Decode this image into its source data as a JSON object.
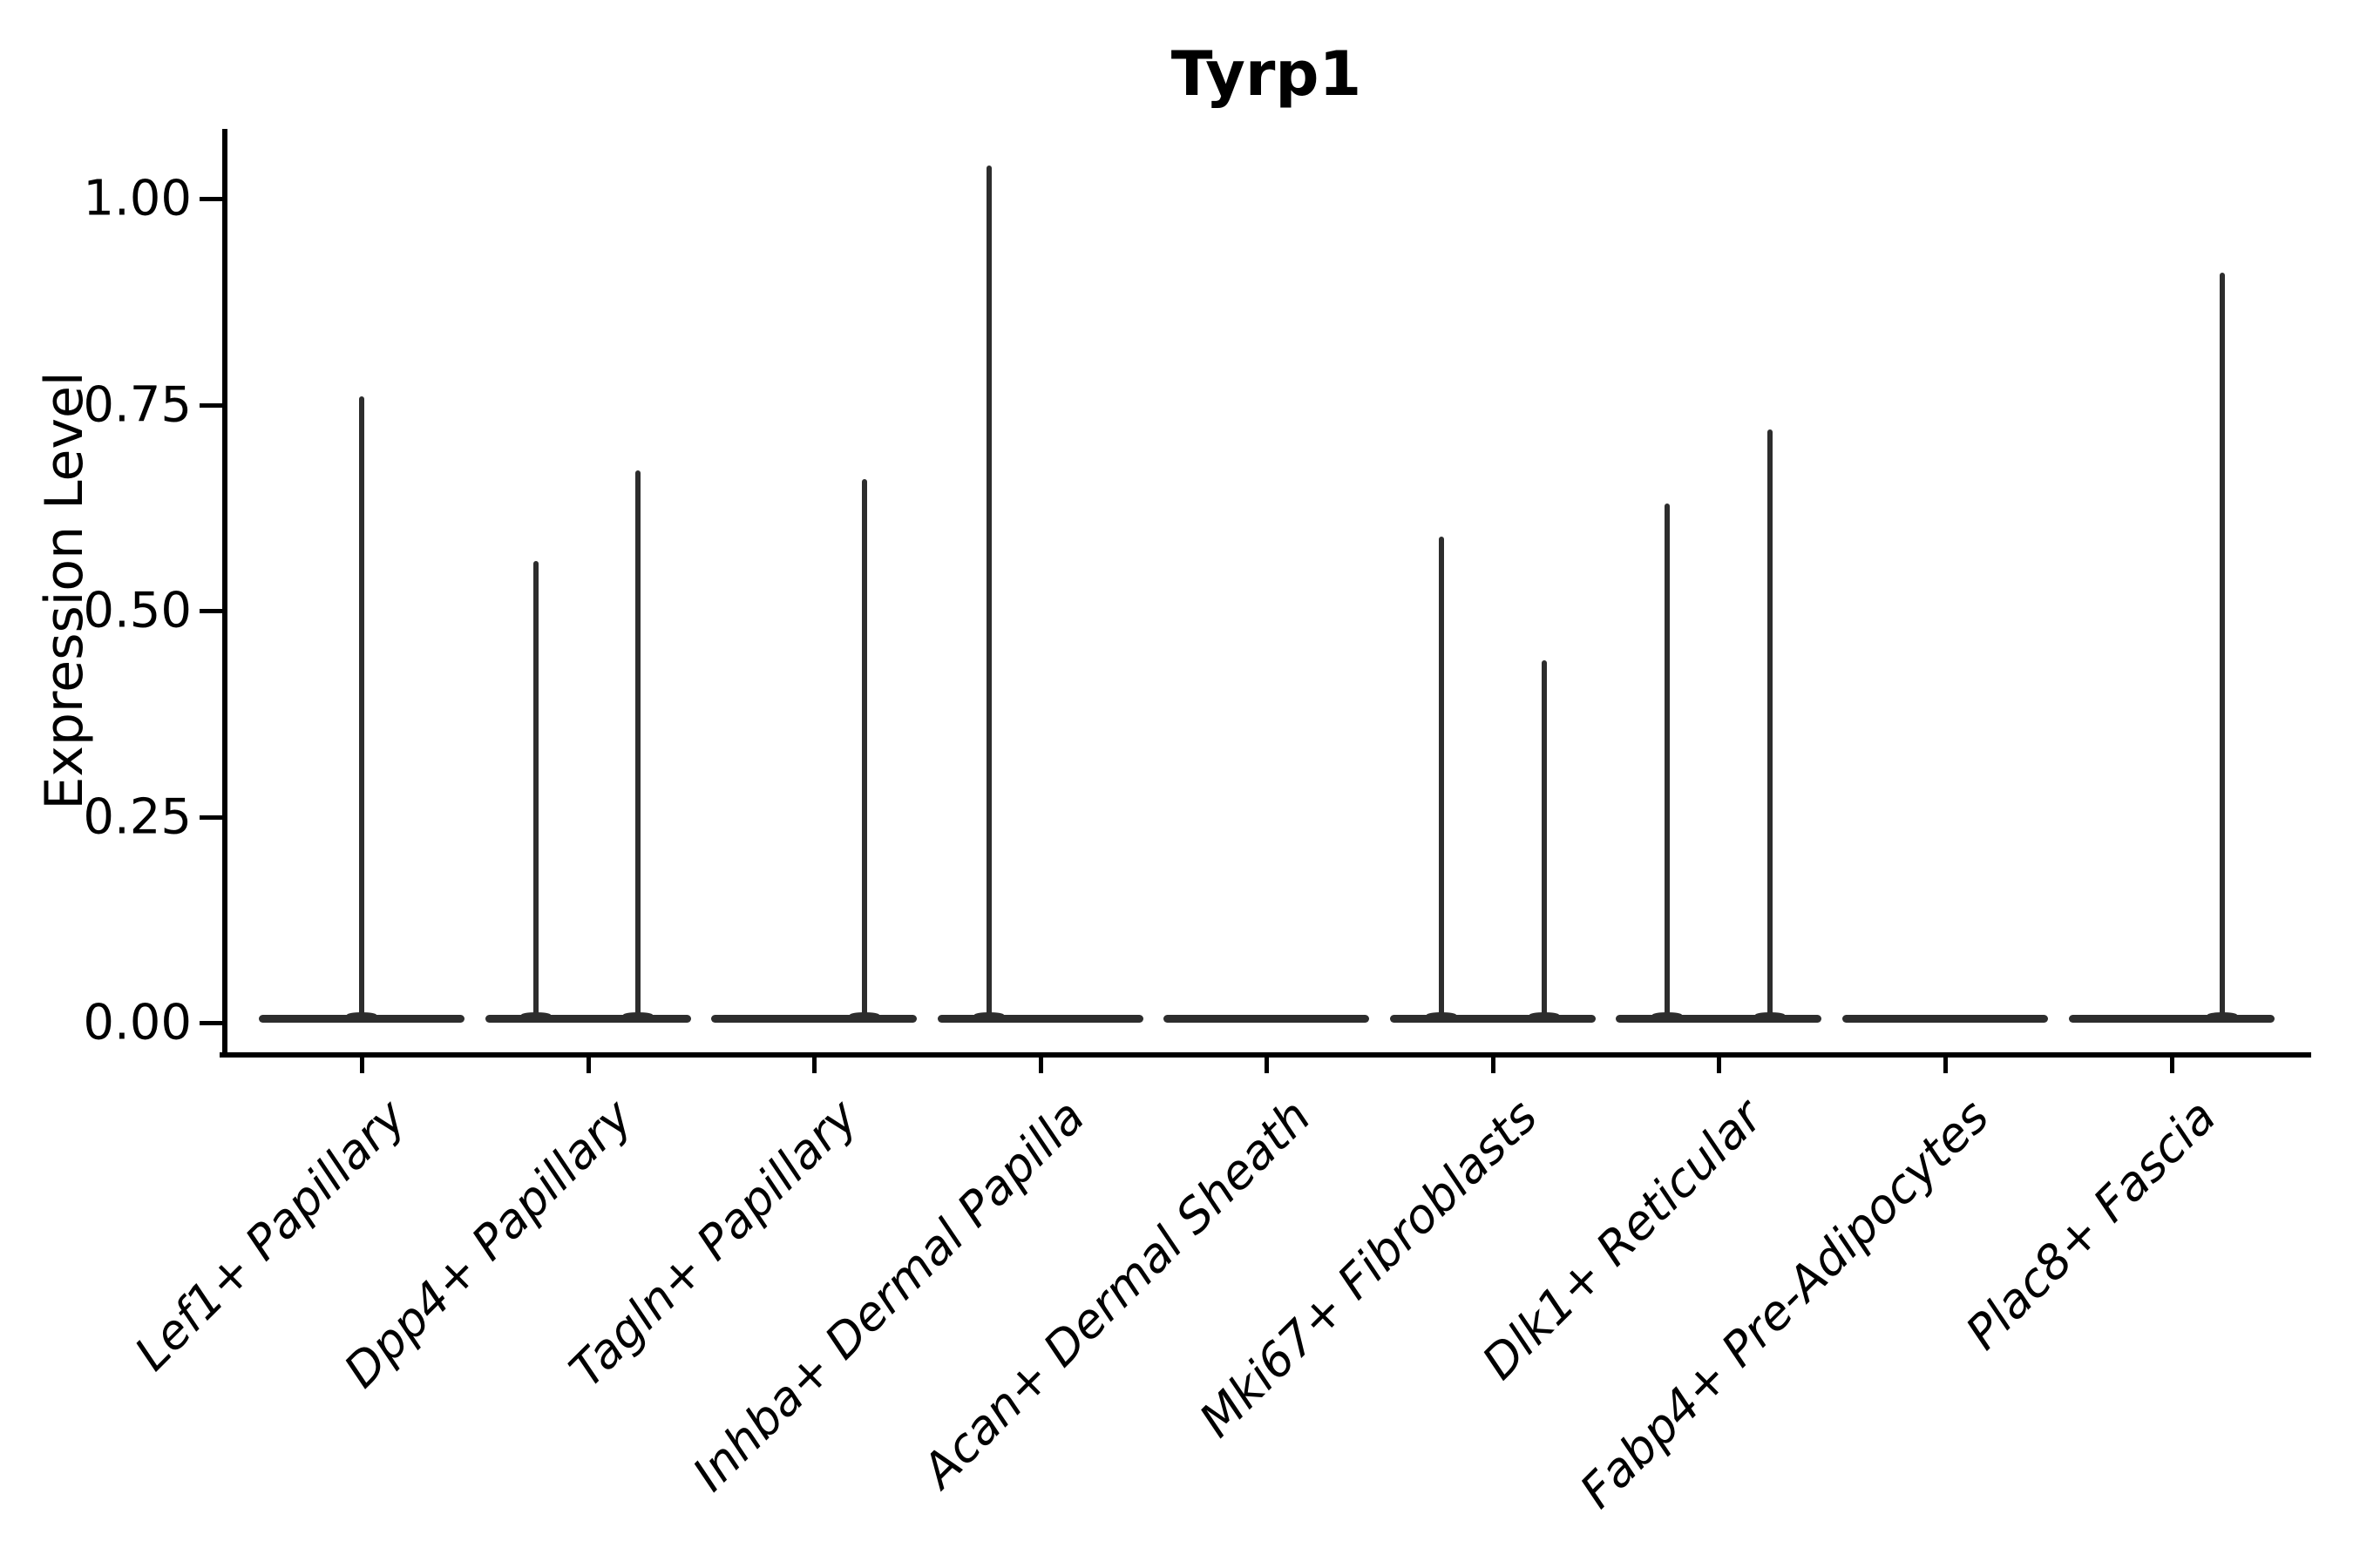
{
  "chart_data": {
    "type": "violin",
    "title": "Tyrp1",
    "xlabel": "",
    "ylabel": "Expression Level",
    "grid": false,
    "legend": "none",
    "axis_color": "#000000",
    "violin_color": "#2d2d2d",
    "ylim": [
      -0.04,
      1.09
    ],
    "y_ticks": [
      {
        "label": "0.00",
        "value": 0.0
      },
      {
        "label": "0.25",
        "value": 0.25
      },
      {
        "label": "0.50",
        "value": 0.5
      },
      {
        "label": "0.75",
        "value": 0.75
      },
      {
        "label": "1.00",
        "value": 1.0
      }
    ],
    "categories": [
      {
        "label": "Lef1+ Papillary",
        "spikes": [
          {
            "offset": 0,
            "peak": 0.76
          }
        ]
      },
      {
        "label": "Dpp4+ Papillary",
        "spikes": [
          {
            "offset": -60,
            "peak": 0.56
          },
          {
            "offset": 57,
            "peak": 0.67
          }
        ]
      },
      {
        "label": "Tagln+ Papillary",
        "spikes": [
          {
            "offset": 58,
            "peak": 0.66
          }
        ]
      },
      {
        "label": "Inhba+ Dermal Papilla",
        "spikes": [
          {
            "offset": -59,
            "peak": 1.04
          }
        ]
      },
      {
        "label": "Acan+ Dermal Sheath",
        "spikes": []
      },
      {
        "label": "Mki67+ Fibroblasts",
        "spikes": [
          {
            "offset": -59,
            "peak": 0.59
          },
          {
            "offset": 59,
            "peak": 0.44
          }
        ]
      },
      {
        "label": "Dlk1+ Reticular",
        "spikes": [
          {
            "offset": -59,
            "peak": 0.63
          },
          {
            "offset": 59,
            "peak": 0.72
          }
        ]
      },
      {
        "label": "Fabp4+ Pre-Adipocytes",
        "spikes": []
      },
      {
        "label": "Plac8+ Fascia",
        "spikes": [
          {
            "offset": 58,
            "peak": 0.91
          }
        ]
      }
    ]
  }
}
